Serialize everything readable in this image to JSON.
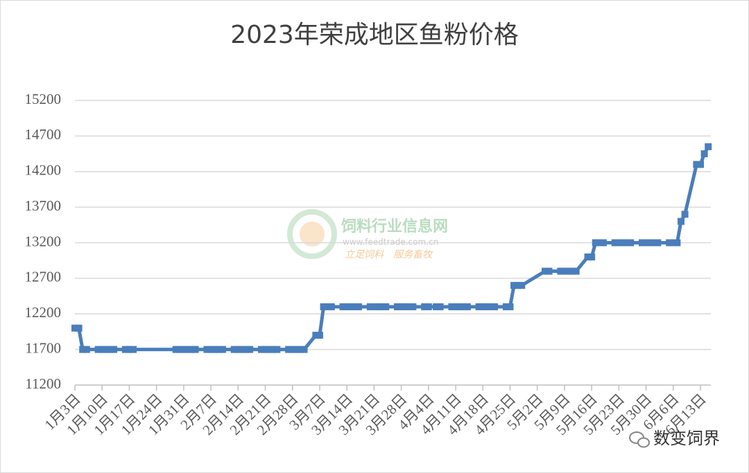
{
  "chart_data": {
    "type": "line",
    "title": "2023年荣成地区鱼粉价格",
    "x": [
      "1月3日",
      "1月4日",
      "1月5日",
      "1月6日",
      "1月9日",
      "1月10日",
      "1月11日",
      "1月12日",
      "1月13日",
      "1月16日",
      "1月17日",
      "1月18日",
      "1月29日",
      "1月30日",
      "1月31日",
      "2月1日",
      "2月2日",
      "2月3日",
      "2月6日",
      "2月7日",
      "2月8日",
      "2月9日",
      "2月10日",
      "2月13日",
      "2月14日",
      "2月15日",
      "2月16日",
      "2月17日",
      "2月20日",
      "2月21日",
      "2月22日",
      "2月23日",
      "2月24日",
      "2月27日",
      "2月28日",
      "3月1日",
      "3月2日",
      "3月3日",
      "3月6日",
      "3月7日",
      "3月8日",
      "3月9日",
      "3月10日",
      "3月13日",
      "3月14日",
      "3月15日",
      "3月16日",
      "3月17日",
      "3月20日",
      "3月21日",
      "3月22日",
      "3月23日",
      "3月24日",
      "3月27日",
      "3月28日",
      "3月29日",
      "3月30日",
      "3月31日",
      "4月3日",
      "4月4日",
      "4月6日",
      "4月7日",
      "4月10日",
      "4月11日",
      "4月12日",
      "4月13日",
      "4月14日",
      "4月17日",
      "4月18日",
      "4月19日",
      "4月20日",
      "4月21日",
      "4月24日",
      "4月25日",
      "4月26日",
      "4月27日",
      "4月28日",
      "5月4日",
      "5月5日",
      "5月8日",
      "5月9日",
      "5月10日",
      "5月11日",
      "5月12日",
      "5月15日",
      "5月16日",
      "5月17日",
      "5月18日",
      "5月19日",
      "5月22日",
      "5月23日",
      "5月24日",
      "5月25日",
      "5月26日",
      "5月29日",
      "5月30日",
      "5月31日",
      "6月1日",
      "6月2日",
      "6月5日",
      "6月6日",
      "6月7日",
      "6月8日",
      "6月9日",
      "6月12日",
      "6月13日",
      "6月14日",
      "6月15日"
    ],
    "values": [
      12000,
      12000,
      11700,
      11700,
      11700,
      11700,
      11700,
      11700,
      11700,
      11700,
      11700,
      11700,
      11700,
      11700,
      11700,
      11700,
      11700,
      11700,
      11700,
      11700,
      11700,
      11700,
      11700,
      11700,
      11700,
      11700,
      11700,
      11700,
      11700,
      11700,
      11700,
      11700,
      11700,
      11700,
      11700,
      11700,
      11700,
      11700,
      11900,
      11900,
      12300,
      12300,
      12300,
      12300,
      12300,
      12300,
      12300,
      12300,
      12300,
      12300,
      12300,
      12300,
      12300,
      12300,
      12300,
      12300,
      12300,
      12300,
      12300,
      12300,
      12300,
      12300,
      12300,
      12300,
      12300,
      12300,
      12300,
      12300,
      12300,
      12300,
      12300,
      12300,
      12300,
      12300,
      12600,
      12600,
      12600,
      12800,
      12800,
      12800,
      12800,
      12800,
      12800,
      12800,
      13000,
      13000,
      13200,
      13200,
      13200,
      13200,
      13200,
      13200,
      13200,
      13200,
      13200,
      13200,
      13200,
      13200,
      13200,
      13200,
      13200,
      13200,
      13500,
      13600,
      14300,
      14300,
      14450,
      14550
    ],
    "color": "#4a7ebb",
    "ylim": [
      11200,
      15200
    ],
    "yticks": [
      11200,
      11700,
      12200,
      12700,
      13200,
      13700,
      14200,
      14700,
      15200
    ],
    "xticks": [
      "1月3日",
      "1月10日",
      "1月17日",
      "1月24日",
      "1月31日",
      "2月7日",
      "2月14日",
      "2月21日",
      "2月28日",
      "3月7日",
      "3月14日",
      "3月21日",
      "3月28日",
      "4月4日",
      "4月11日",
      "4月18日",
      "4月25日",
      "5月2日",
      "5月9日",
      "5月16日",
      "5月23日",
      "5月30日",
      "6月6日",
      "6月13日"
    ],
    "grid": true,
    "watermark": [
      "饲料行业信息网",
      "www.feedtrade.com.cn",
      "立足饲料　服务畜牧",
      "数变饲界"
    ]
  }
}
